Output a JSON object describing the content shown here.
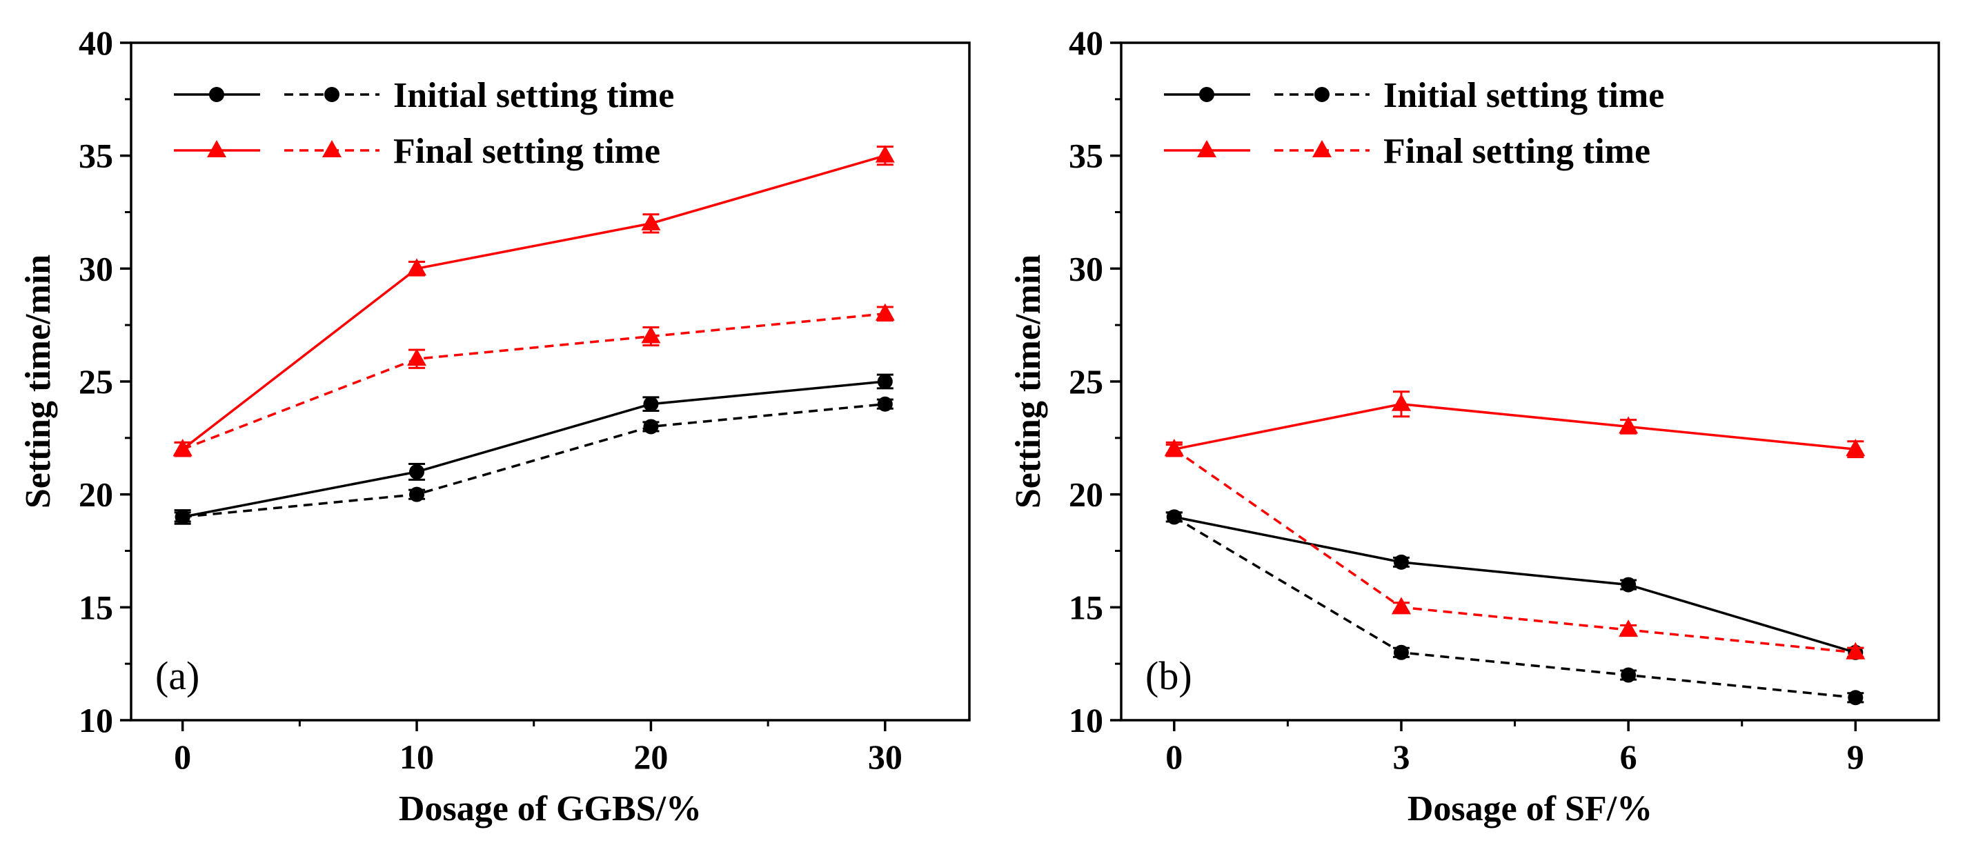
{
  "colors": {
    "black": "#000000",
    "red": "#ff0000"
  },
  "chart_data": [
    {
      "type": "line",
      "panel_label": "(a)",
      "xlabel": "Dosage of GGBS/%",
      "ylabel": "Setting time/min",
      "x": [
        0,
        10,
        20,
        30
      ],
      "xticks": [
        "0",
        "10",
        "20",
        "30"
      ],
      "xlim": [
        -2.2,
        33.6
      ],
      "ylim": [
        10,
        40
      ],
      "yticks": [
        "10",
        "15",
        "20",
        "25",
        "30",
        "35",
        "40"
      ],
      "grid": false,
      "legend_position": "top-left",
      "legend": [
        "Initial setting time",
        "Final setting time"
      ],
      "series": [
        {
          "label": "Initial setting time (solid)",
          "color": "#000000",
          "marker": "circle",
          "dash": false,
          "values": [
            19,
            21,
            24,
            25
          ],
          "errors": [
            0.3,
            0.35,
            0.3,
            0.3
          ]
        },
        {
          "label": "Initial setting time (dashed)",
          "color": "#000000",
          "marker": "circle",
          "dash": true,
          "values": [
            19,
            20,
            23,
            24
          ],
          "errors": [
            0.2,
            0.2,
            0.2,
            0.2
          ]
        },
        {
          "label": "Final setting time (solid)",
          "color": "#ff0000",
          "marker": "triangle",
          "dash": false,
          "values": [
            22,
            30,
            32,
            35
          ],
          "errors": [
            0.3,
            0.3,
            0.4,
            0.4
          ]
        },
        {
          "label": "Final setting time (dashed)",
          "color": "#ff0000",
          "marker": "triangle",
          "dash": true,
          "values": [
            22,
            26,
            27,
            28
          ],
          "errors": [
            0.3,
            0.4,
            0.4,
            0.3
          ]
        }
      ]
    },
    {
      "type": "line",
      "panel_label": "(b)",
      "xlabel": "Dosage of SF/%",
      "ylabel": "Setting time/min",
      "x": [
        0,
        3,
        6,
        9
      ],
      "xticks": [
        "0",
        "3",
        "6",
        "9"
      ],
      "xlim": [
        -0.7,
        10.1
      ],
      "ylim": [
        10,
        40
      ],
      "yticks": [
        "10",
        "15",
        "20",
        "25",
        "30",
        "35",
        "40"
      ],
      "grid": false,
      "legend_position": "top-left",
      "legend": [
        "Initial setting time",
        "Final setting time"
      ],
      "series": [
        {
          "label": "Initial setting time (solid)",
          "color": "#000000",
          "marker": "circle",
          "dash": false,
          "values": [
            19,
            17,
            16,
            13
          ],
          "errors": [
            0.2,
            0.2,
            0.2,
            0.2
          ]
        },
        {
          "label": "Initial setting time (dashed)",
          "color": "#000000",
          "marker": "circle",
          "dash": true,
          "values": [
            19,
            13,
            12,
            11
          ],
          "errors": [
            0.2,
            0.2,
            0.2,
            0.2
          ]
        },
        {
          "label": "Final setting time (solid)",
          "color": "#ff0000",
          "marker": "triangle",
          "dash": false,
          "values": [
            22,
            24,
            23,
            22
          ],
          "errors": [
            0.3,
            0.55,
            0.3,
            0.35
          ]
        },
        {
          "label": "Final setting time (dashed)",
          "color": "#ff0000",
          "marker": "triangle",
          "dash": true,
          "values": [
            22,
            15,
            14,
            13
          ],
          "errors": [
            0.2,
            0.2,
            0.2,
            0.2
          ]
        }
      ]
    }
  ]
}
